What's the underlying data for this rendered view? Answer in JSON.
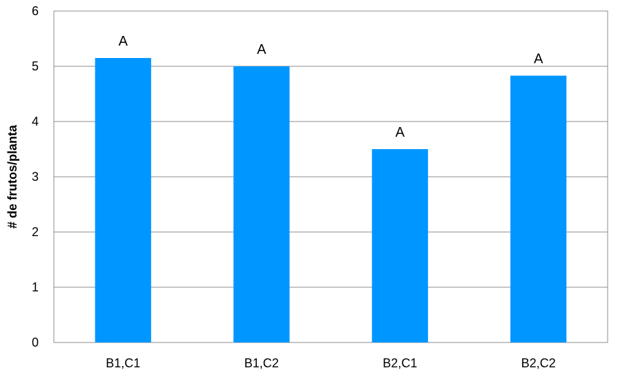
{
  "chart_data": {
    "type": "bar",
    "title": "",
    "xlabel": "",
    "ylabel": "# de frutos/planta",
    "categories": [
      "B1,C1",
      "B1,C2",
      "B2,C1",
      "B2,C2"
    ],
    "values": [
      5.15,
      5.0,
      3.5,
      4.83
    ],
    "annotations": [
      "A",
      "A",
      "A",
      "A"
    ],
    "ylim": [
      0,
      6
    ],
    "yticks": [
      "0",
      "1",
      "2",
      "3",
      "4",
      "5",
      "6"
    ],
    "grid": "horizontal",
    "legend": "none",
    "bar_color": "#0096FF",
    "grid_color": "#8C8C8C"
  }
}
